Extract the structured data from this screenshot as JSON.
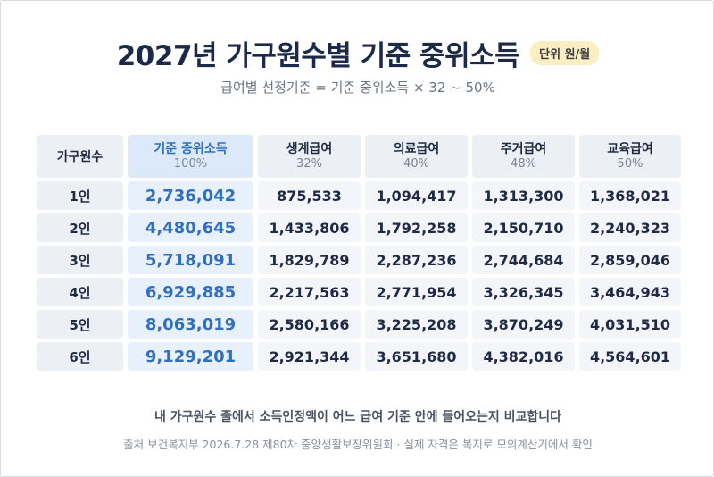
{
  "title": "2027년 가구원수별 기준 중위소득",
  "unit_badge": "단위 원/월",
  "subtitle": "급여별 선정기준 = 기준 중위소득 × 32 ~ 50%",
  "table": {
    "corner": "가구원수",
    "headers": [
      {
        "name": "기준 중위소득",
        "pct": "100%"
      },
      {
        "name": "생계급여",
        "pct": "32%"
      },
      {
        "name": "의료급여",
        "pct": "40%"
      },
      {
        "name": "주거급여",
        "pct": "48%"
      },
      {
        "name": "교육급여",
        "pct": "50%"
      }
    ],
    "rows": [
      {
        "label": "1인",
        "values": [
          "2,736,042",
          "875,533",
          "1,094,417",
          "1,313,300",
          "1,368,021"
        ]
      },
      {
        "label": "2인",
        "values": [
          "4,480,645",
          "1,433,806",
          "1,792,258",
          "2,150,710",
          "2,240,323"
        ]
      },
      {
        "label": "3인",
        "values": [
          "5,718,091",
          "1,829,789",
          "2,287,236",
          "2,744,684",
          "2,859,046"
        ]
      },
      {
        "label": "4인",
        "values": [
          "6,929,885",
          "2,217,563",
          "2,771,954",
          "3,326,345",
          "3,464,943"
        ]
      },
      {
        "label": "5인",
        "values": [
          "8,063,019",
          "2,580,166",
          "3,225,208",
          "3,870,249",
          "4,031,510"
        ]
      },
      {
        "label": "6인",
        "values": [
          "9,129,201",
          "2,921,344",
          "3,651,680",
          "4,382,016",
          "4,564,601"
        ]
      }
    ]
  },
  "footer": {
    "note": "내 가구원수 줄에서 소득인정액이 어느 급여 기준 안에 들어오는지 비교합니다",
    "source": "출처 보건복지부 2026.7.28 제80차 중앙생활보장위원회 · 실제 자격은 복지로 모의계산기에서 확인"
  },
  "colors": {
    "title": "#1c2a4a",
    "highlight": "#2f6fc2",
    "highlight_bg": "#e7f0fb",
    "badge_bg": "#fbeec2"
  }
}
